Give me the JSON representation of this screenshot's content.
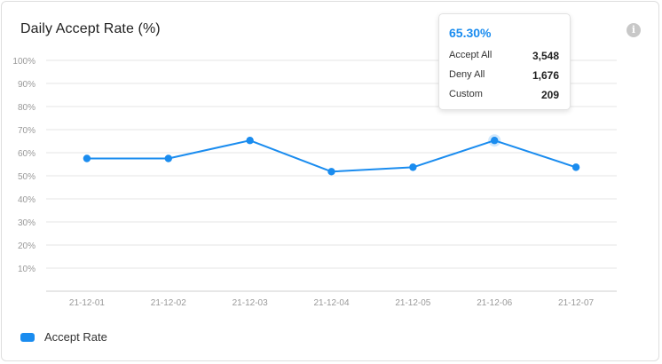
{
  "colors": {
    "series": "#1a8cef",
    "grid": "#e6e6e6",
    "axis": "#cfcfcf",
    "tick_text": "#999999"
  },
  "header": {
    "title": "Daily Accept Rate (%)",
    "info_icon": "info-icon"
  },
  "chart_data": {
    "type": "line",
    "title": "Daily Accept Rate (%)",
    "categories": [
      "21-12-01",
      "21-12-02",
      "21-12-03",
      "21-12-04",
      "21-12-05",
      "21-12-06",
      "21-12-07"
    ],
    "series": [
      {
        "name": "Accept Rate",
        "values": [
          57.5,
          57.5,
          65.3,
          51.8,
          53.7,
          65.3,
          53.7
        ]
      }
    ],
    "y_ticks": [
      "10%",
      "20%",
      "30%",
      "40%",
      "50%",
      "60%",
      "70%",
      "80%",
      "90%",
      "100%"
    ],
    "ylim": [
      0,
      100
    ],
    "grid": true,
    "legend_position": "bottom-left",
    "highlighted_index": 5
  },
  "tooltip": {
    "value": "65.30%",
    "rows": [
      {
        "label": "Accept All",
        "value": "3,548"
      },
      {
        "label": "Deny All",
        "value": "1,676"
      },
      {
        "label": "Custom",
        "value": "209"
      }
    ]
  },
  "legend": {
    "label": "Accept Rate"
  }
}
